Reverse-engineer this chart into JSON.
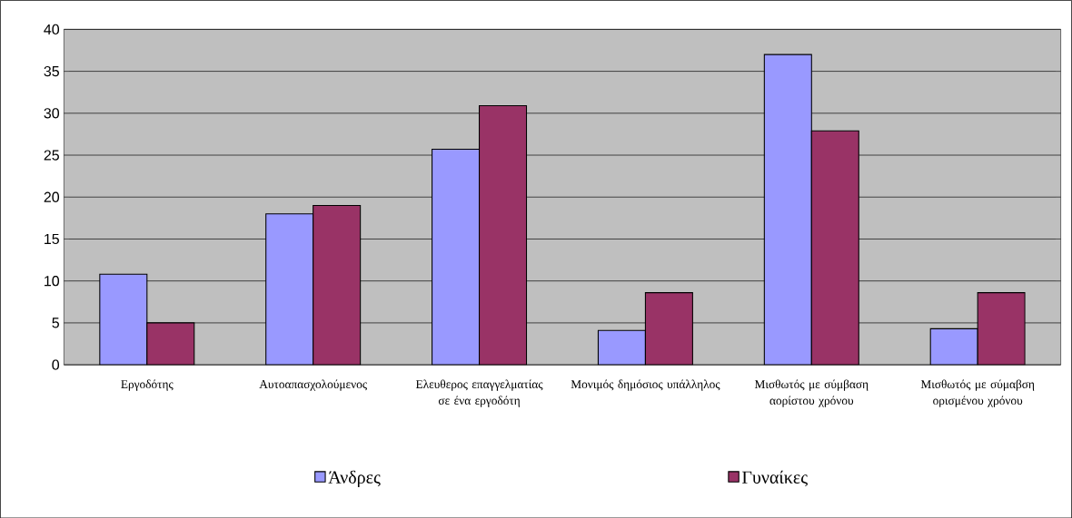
{
  "chart_data": {
    "type": "bar",
    "categories": [
      "Εργοδότης",
      "Αυτοαπασχολούμενος",
      "Ελευθερος επαγγελματίας σε ένα εργοδότη",
      "Μονιμός δημόσιος υπάλληλος",
      "Μισθωτός με σύμβαση αορίστου χρόνου",
      "Μισθωτός με σύμαβση ορισμένου χρόνου"
    ],
    "series": [
      {
        "name": "Άνδρες",
        "color": "#9999ff",
        "values": [
          10.8,
          18,
          25.7,
          4.1,
          37,
          4.3
        ]
      },
      {
        "name": "Γυναίκες",
        "color": "#993366",
        "values": [
          5,
          19,
          30.9,
          8.6,
          27.9,
          8.6
        ]
      }
    ],
    "ylim": [
      0,
      40
    ],
    "yticks": [
      0,
      5,
      10,
      15,
      20,
      25,
      30,
      35,
      40
    ],
    "grid": "y",
    "legend": "bottom"
  }
}
